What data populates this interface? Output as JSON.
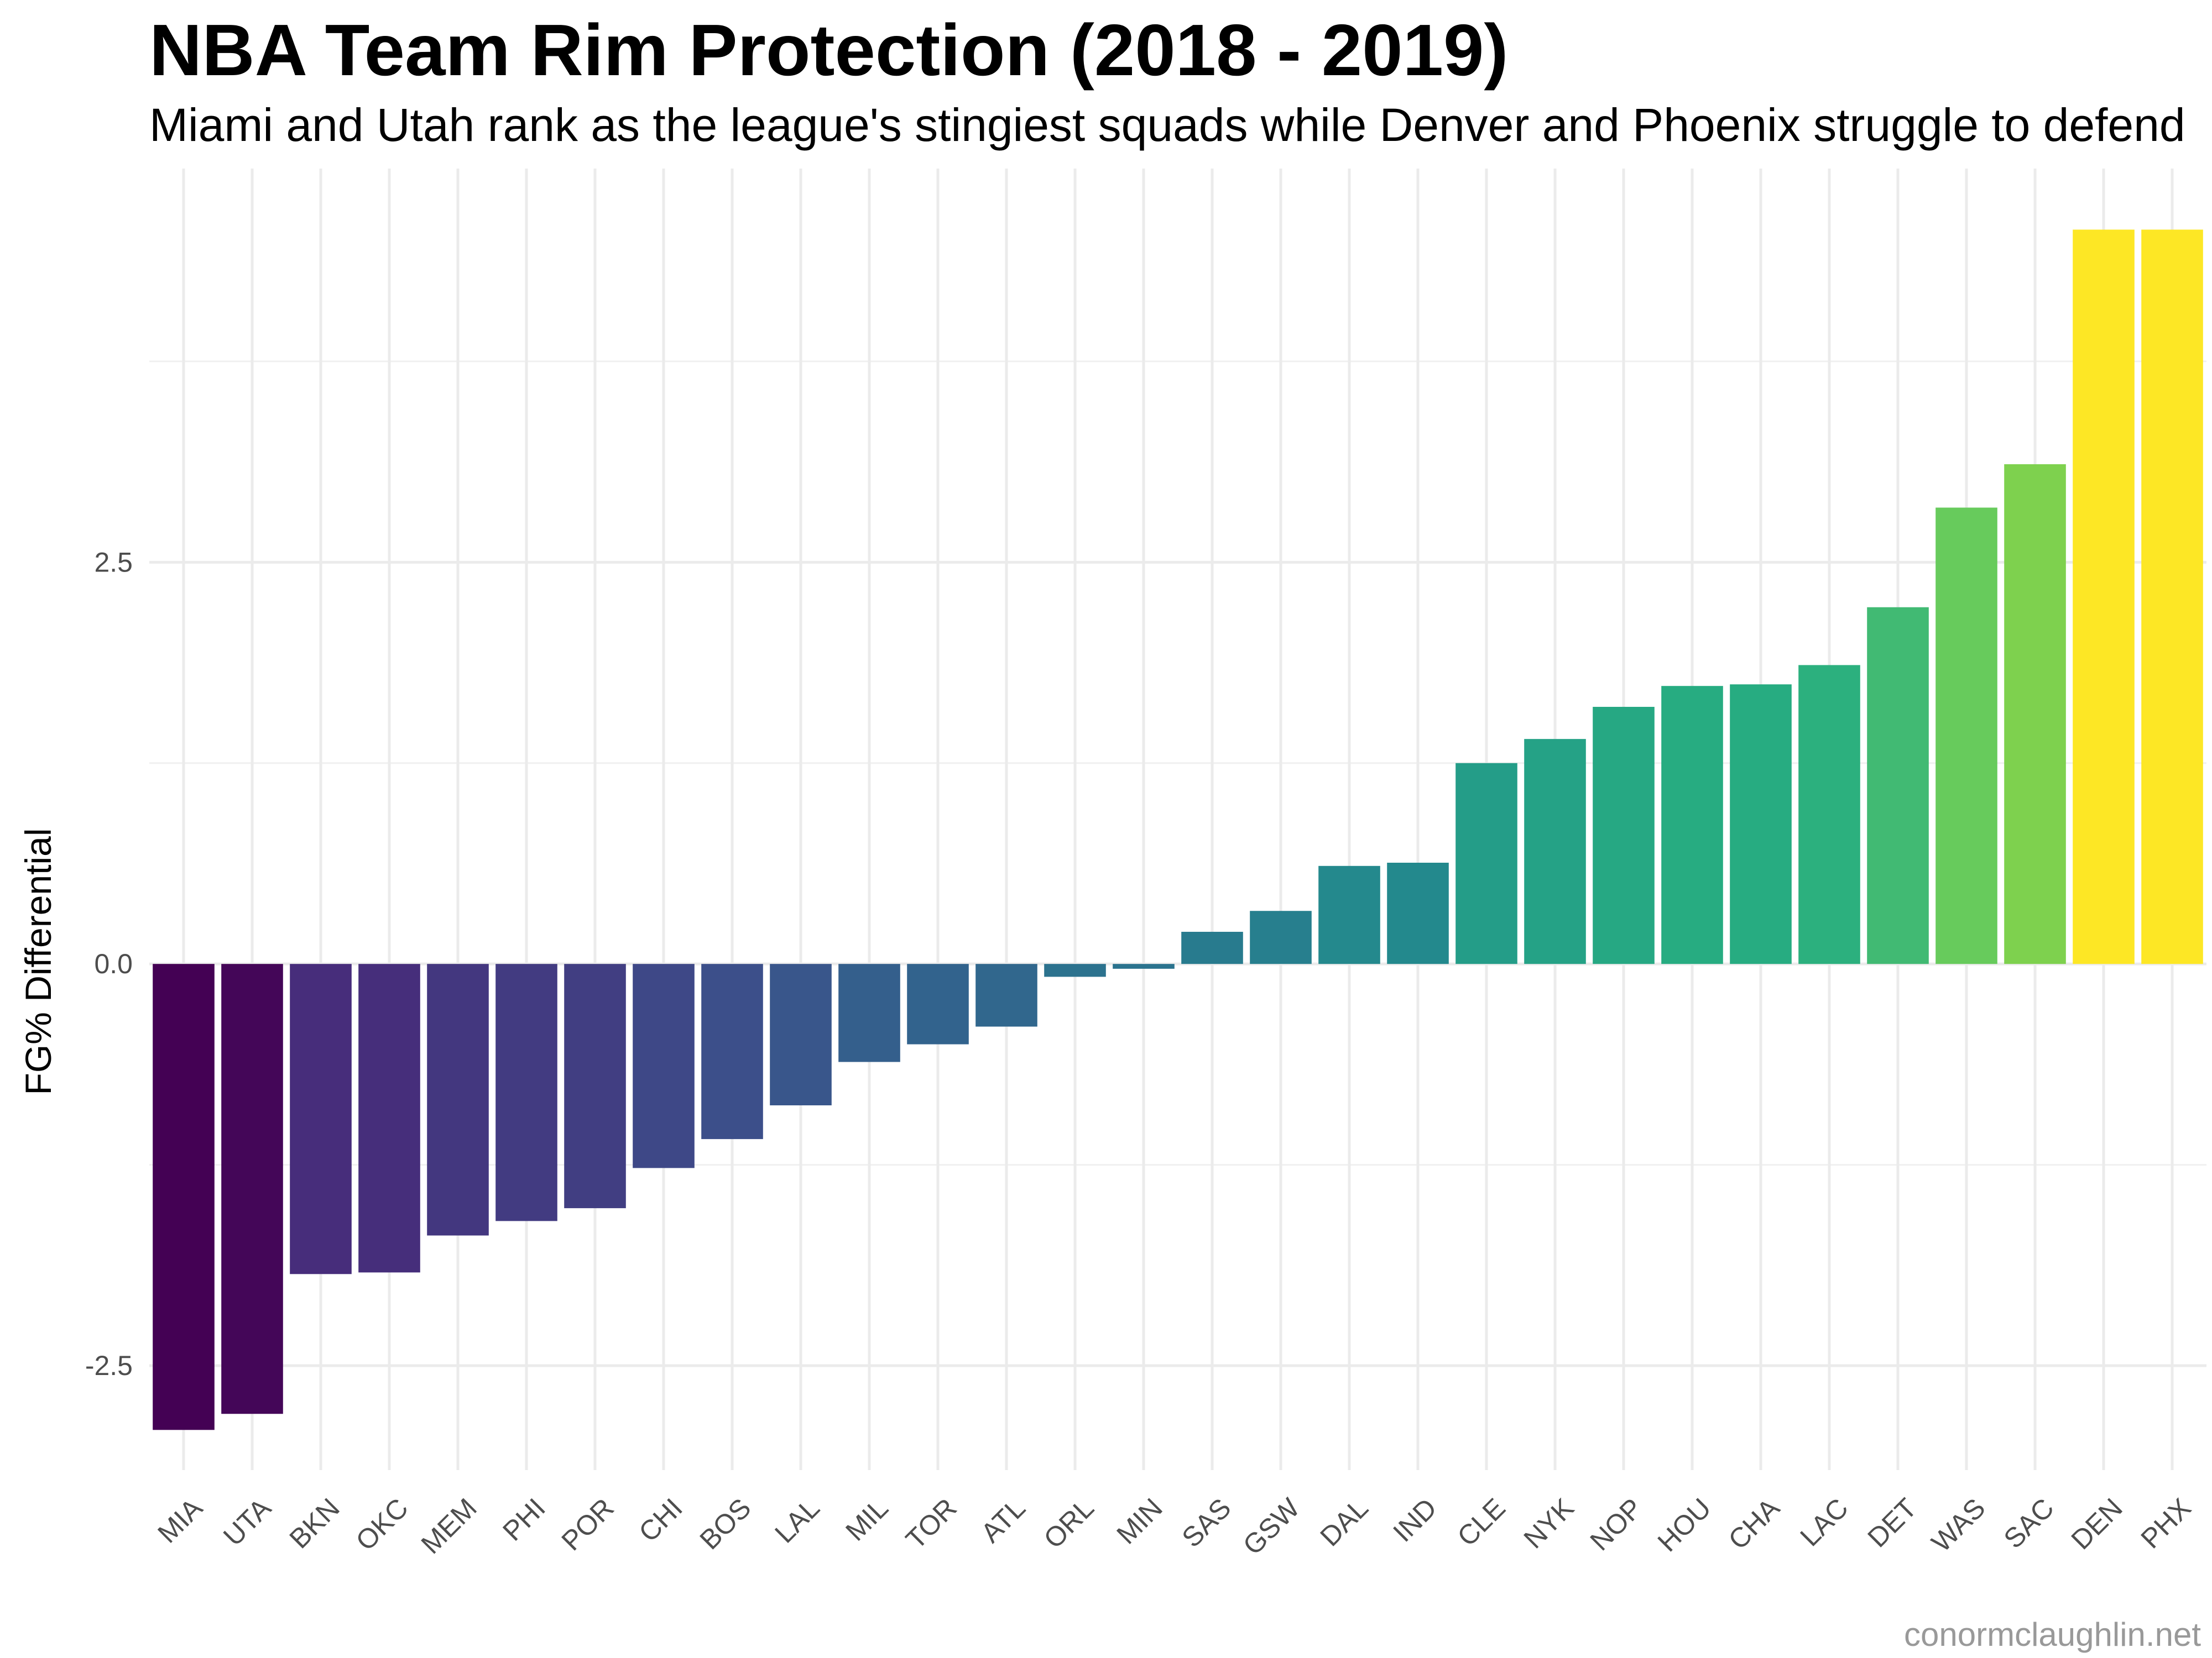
{
  "chart_data": {
    "type": "bar",
    "title": "NBA Team Rim Protection (2018 - 2019)",
    "subtitle": "Miami and Utah rank as the league's stingiest squads while Denver and Phoenix struggle to defend",
    "caption": "conormclaughlin.net",
    "xlabel": "",
    "ylabel": "FG% Differential",
    "ylim": [
      -3.15,
      4.95
    ],
    "yticks": [
      -2.5,
      0.0,
      2.5
    ],
    "ytick_labels": [
      "-2.5",
      "0.0",
      "2.5"
    ],
    "grid": true,
    "legend": "none",
    "colormap": "viridis",
    "categories": [
      "MIA",
      "UTA",
      "BKN",
      "OKC",
      "MEM",
      "PHI",
      "POR",
      "CHI",
      "BOS",
      "LAL",
      "MIL",
      "TOR",
      "ATL",
      "ORL",
      "MIN",
      "SAS",
      "GSW",
      "DAL",
      "IND",
      "CLE",
      "NYK",
      "NOP",
      "HOU",
      "CHA",
      "LAC",
      "DET",
      "WAS",
      "SAC",
      "DEN",
      "PHX"
    ],
    "values": [
      -2.9,
      -2.8,
      -1.93,
      -1.92,
      -1.69,
      -1.6,
      -1.52,
      -1.27,
      -1.09,
      -0.88,
      -0.61,
      -0.5,
      -0.39,
      -0.08,
      -0.03,
      0.2,
      0.33,
      0.61,
      0.63,
      1.25,
      1.4,
      1.6,
      1.73,
      1.74,
      1.86,
      2.22,
      2.84,
      3.11,
      4.57,
      4.57
    ]
  }
}
